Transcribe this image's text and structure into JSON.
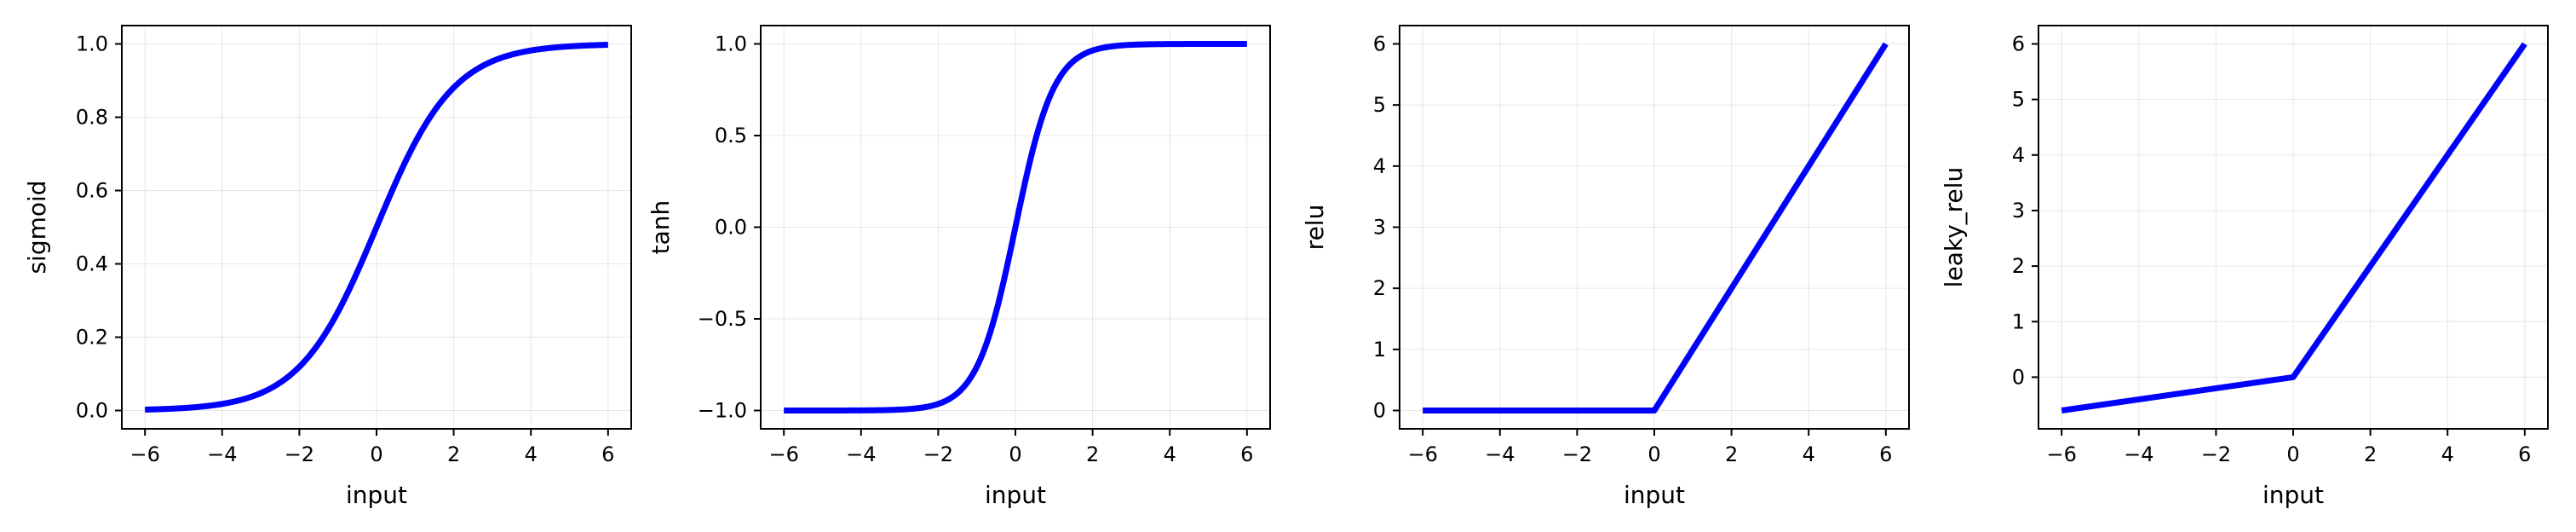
{
  "chart_data": [
    {
      "type": "line",
      "title": "",
      "xlabel": "input",
      "ylabel": "sigmoid",
      "function": "sigmoid",
      "xlim": [
        -6.6,
        6.6
      ],
      "ylim": [
        -0.05,
        1.05
      ],
      "xticks": [
        -6,
        -4,
        -2,
        0,
        2,
        4,
        6
      ],
      "yticks": [
        0.0,
        0.2,
        0.4,
        0.6,
        0.8,
        1.0
      ],
      "ytick_labels": [
        "0.0",
        "0.2",
        "0.4",
        "0.6",
        "0.8",
        "1.0"
      ],
      "grid": true,
      "color": "#0000ff",
      "series": [
        {
          "x": [
            -6,
            -5,
            -4,
            -3,
            -2,
            -1.5,
            -1,
            -0.5,
            0,
            0.5,
            1,
            1.5,
            2,
            3,
            4,
            5,
            6
          ],
          "values": [
            0.0025,
            0.0067,
            0.018,
            0.047,
            0.119,
            0.182,
            0.269,
            0.378,
            0.5,
            0.622,
            0.731,
            0.818,
            0.881,
            0.953,
            0.982,
            0.9933,
            0.9975
          ]
        }
      ]
    },
    {
      "type": "line",
      "title": "",
      "xlabel": "input",
      "ylabel": "tanh",
      "function": "tanh",
      "xlim": [
        -6.6,
        6.6
      ],
      "ylim": [
        -1.1,
        1.1
      ],
      "xticks": [
        -6,
        -4,
        -2,
        0,
        2,
        4,
        6
      ],
      "yticks": [
        -1.0,
        -0.5,
        0.0,
        0.5,
        1.0
      ],
      "ytick_labels": [
        "−1.0",
        "−0.5",
        "0.0",
        "0.5",
        "1.0"
      ],
      "grid": true,
      "color": "#0000ff",
      "series": [
        {
          "x": [
            -6,
            -4,
            -3,
            -2,
            -1.5,
            -1,
            -0.5,
            0,
            0.5,
            1,
            1.5,
            2,
            3,
            4,
            6
          ],
          "values": [
            -1.0,
            -0.999,
            -0.995,
            -0.964,
            -0.905,
            -0.762,
            -0.462,
            0.0,
            0.462,
            0.762,
            0.905,
            0.964,
            0.995,
            0.999,
            1.0
          ]
        }
      ]
    },
    {
      "type": "line",
      "title": "",
      "xlabel": "input",
      "ylabel": "relu",
      "function": "relu",
      "xlim": [
        -6.6,
        6.6
      ],
      "ylim": [
        -0.3,
        6.3
      ],
      "xticks": [
        -6,
        -4,
        -2,
        0,
        2,
        4,
        6
      ],
      "yticks": [
        0,
        1,
        2,
        3,
        4,
        5,
        6
      ],
      "ytick_labels": [
        "0",
        "1",
        "2",
        "3",
        "4",
        "5",
        "6"
      ],
      "grid": true,
      "color": "#0000ff",
      "series": [
        {
          "x": [
            -6,
            0,
            6
          ],
          "values": [
            0,
            0,
            6
          ]
        }
      ]
    },
    {
      "type": "line",
      "title": "",
      "xlabel": "input",
      "ylabel": "leaky_relu",
      "function": "leaky_relu",
      "xlim": [
        -6.6,
        6.6
      ],
      "ylim": [
        -0.93,
        6.33
      ],
      "xticks": [
        -6,
        -4,
        -2,
        0,
        2,
        4,
        6
      ],
      "yticks": [
        0,
        1,
        2,
        3,
        4,
        5,
        6
      ],
      "ytick_labels": [
        "0",
        "1",
        "2",
        "3",
        "4",
        "5",
        "6"
      ],
      "grid": true,
      "color": "#0000ff",
      "series": [
        {
          "x": [
            -6,
            0,
            6
          ],
          "values": [
            -0.6,
            0,
            6
          ]
        }
      ]
    }
  ]
}
